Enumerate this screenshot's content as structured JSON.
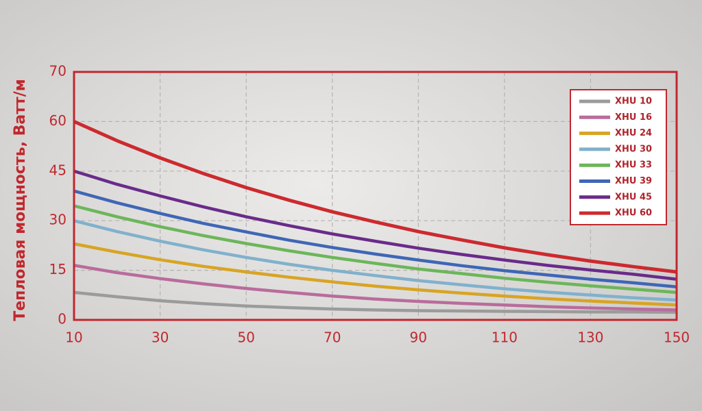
{
  "chart_data": {
    "type": "line",
    "y_label": "Тепловая мощность,  Ватт/м",
    "x": [
      10,
      20,
      30,
      40,
      50,
      60,
      70,
      80,
      90,
      100,
      110,
      120,
      130,
      140,
      150
    ],
    "xlim": [
      10,
      150
    ],
    "xticks": [
      10,
      30,
      50,
      70,
      90,
      110,
      130,
      150
    ],
    "ylim": [
      0,
      70
    ],
    "yticks": [
      0,
      15,
      30,
      45,
      60,
      70
    ],
    "grid": true,
    "legend": "upper right",
    "series": [
      {
        "name": "XHU 10",
        "color": "#9b9b9b",
        "values": [
          8.3,
          7.0,
          5.8,
          4.9,
          4.2,
          3.7,
          3.3,
          3.0,
          2.8,
          2.7,
          2.6,
          2.5,
          2.4,
          2.4,
          2.3
        ]
      },
      {
        "name": "XHU 16",
        "color": "#b96c9c",
        "values": [
          16.5,
          14.3,
          12.5,
          10.9,
          9.5,
          8.3,
          7.2,
          6.3,
          5.6,
          5.0,
          4.5,
          4.0,
          3.6,
          3.3,
          3.0
        ]
      },
      {
        "name": "XHU 24",
        "color": "#d8a423",
        "values": [
          23,
          20.5,
          18.2,
          16.2,
          14.5,
          12.9,
          11.5,
          10.2,
          9.1,
          8.1,
          7.2,
          6.4,
          5.7,
          5.1,
          4.5
        ]
      },
      {
        "name": "XHU 30",
        "color": "#80b1cc",
        "values": [
          30,
          26.7,
          23.8,
          21.2,
          18.9,
          16.8,
          15.0,
          13.4,
          11.9,
          10.6,
          9.4,
          8.4,
          7.5,
          6.7,
          6.0
        ]
      },
      {
        "name": "XHU 33",
        "color": "#6cb65a",
        "values": [
          34.5,
          31.2,
          28.2,
          25.5,
          23.1,
          20.9,
          18.9,
          17.1,
          15.4,
          14.0,
          12.6,
          11.4,
          10.3,
          9.3,
          8.3
        ]
      },
      {
        "name": "XHU 39",
        "color": "#3f66b6",
        "values": [
          39,
          35.4,
          32.2,
          29.2,
          26.6,
          24.1,
          21.9,
          19.9,
          18.1,
          16.4,
          14.9,
          13.6,
          12.3,
          11.2,
          10
        ]
      },
      {
        "name": "XHU 45",
        "color": "#6a2b8a",
        "values": [
          45,
          41,
          37.5,
          34.2,
          31.2,
          28.5,
          26,
          23.8,
          21.7,
          19.8,
          18.1,
          16.5,
          15.1,
          13.8,
          12.3
        ]
      },
      {
        "name": "XHU 60",
        "color": "#cc2a2f",
        "values": [
          60,
          54.2,
          49.0,
          44.3,
          40.0,
          36.2,
          32.7,
          29.6,
          26.7,
          24.2,
          21.8,
          19.7,
          17.8,
          16.1,
          14.5
        ]
      }
    ]
  }
}
